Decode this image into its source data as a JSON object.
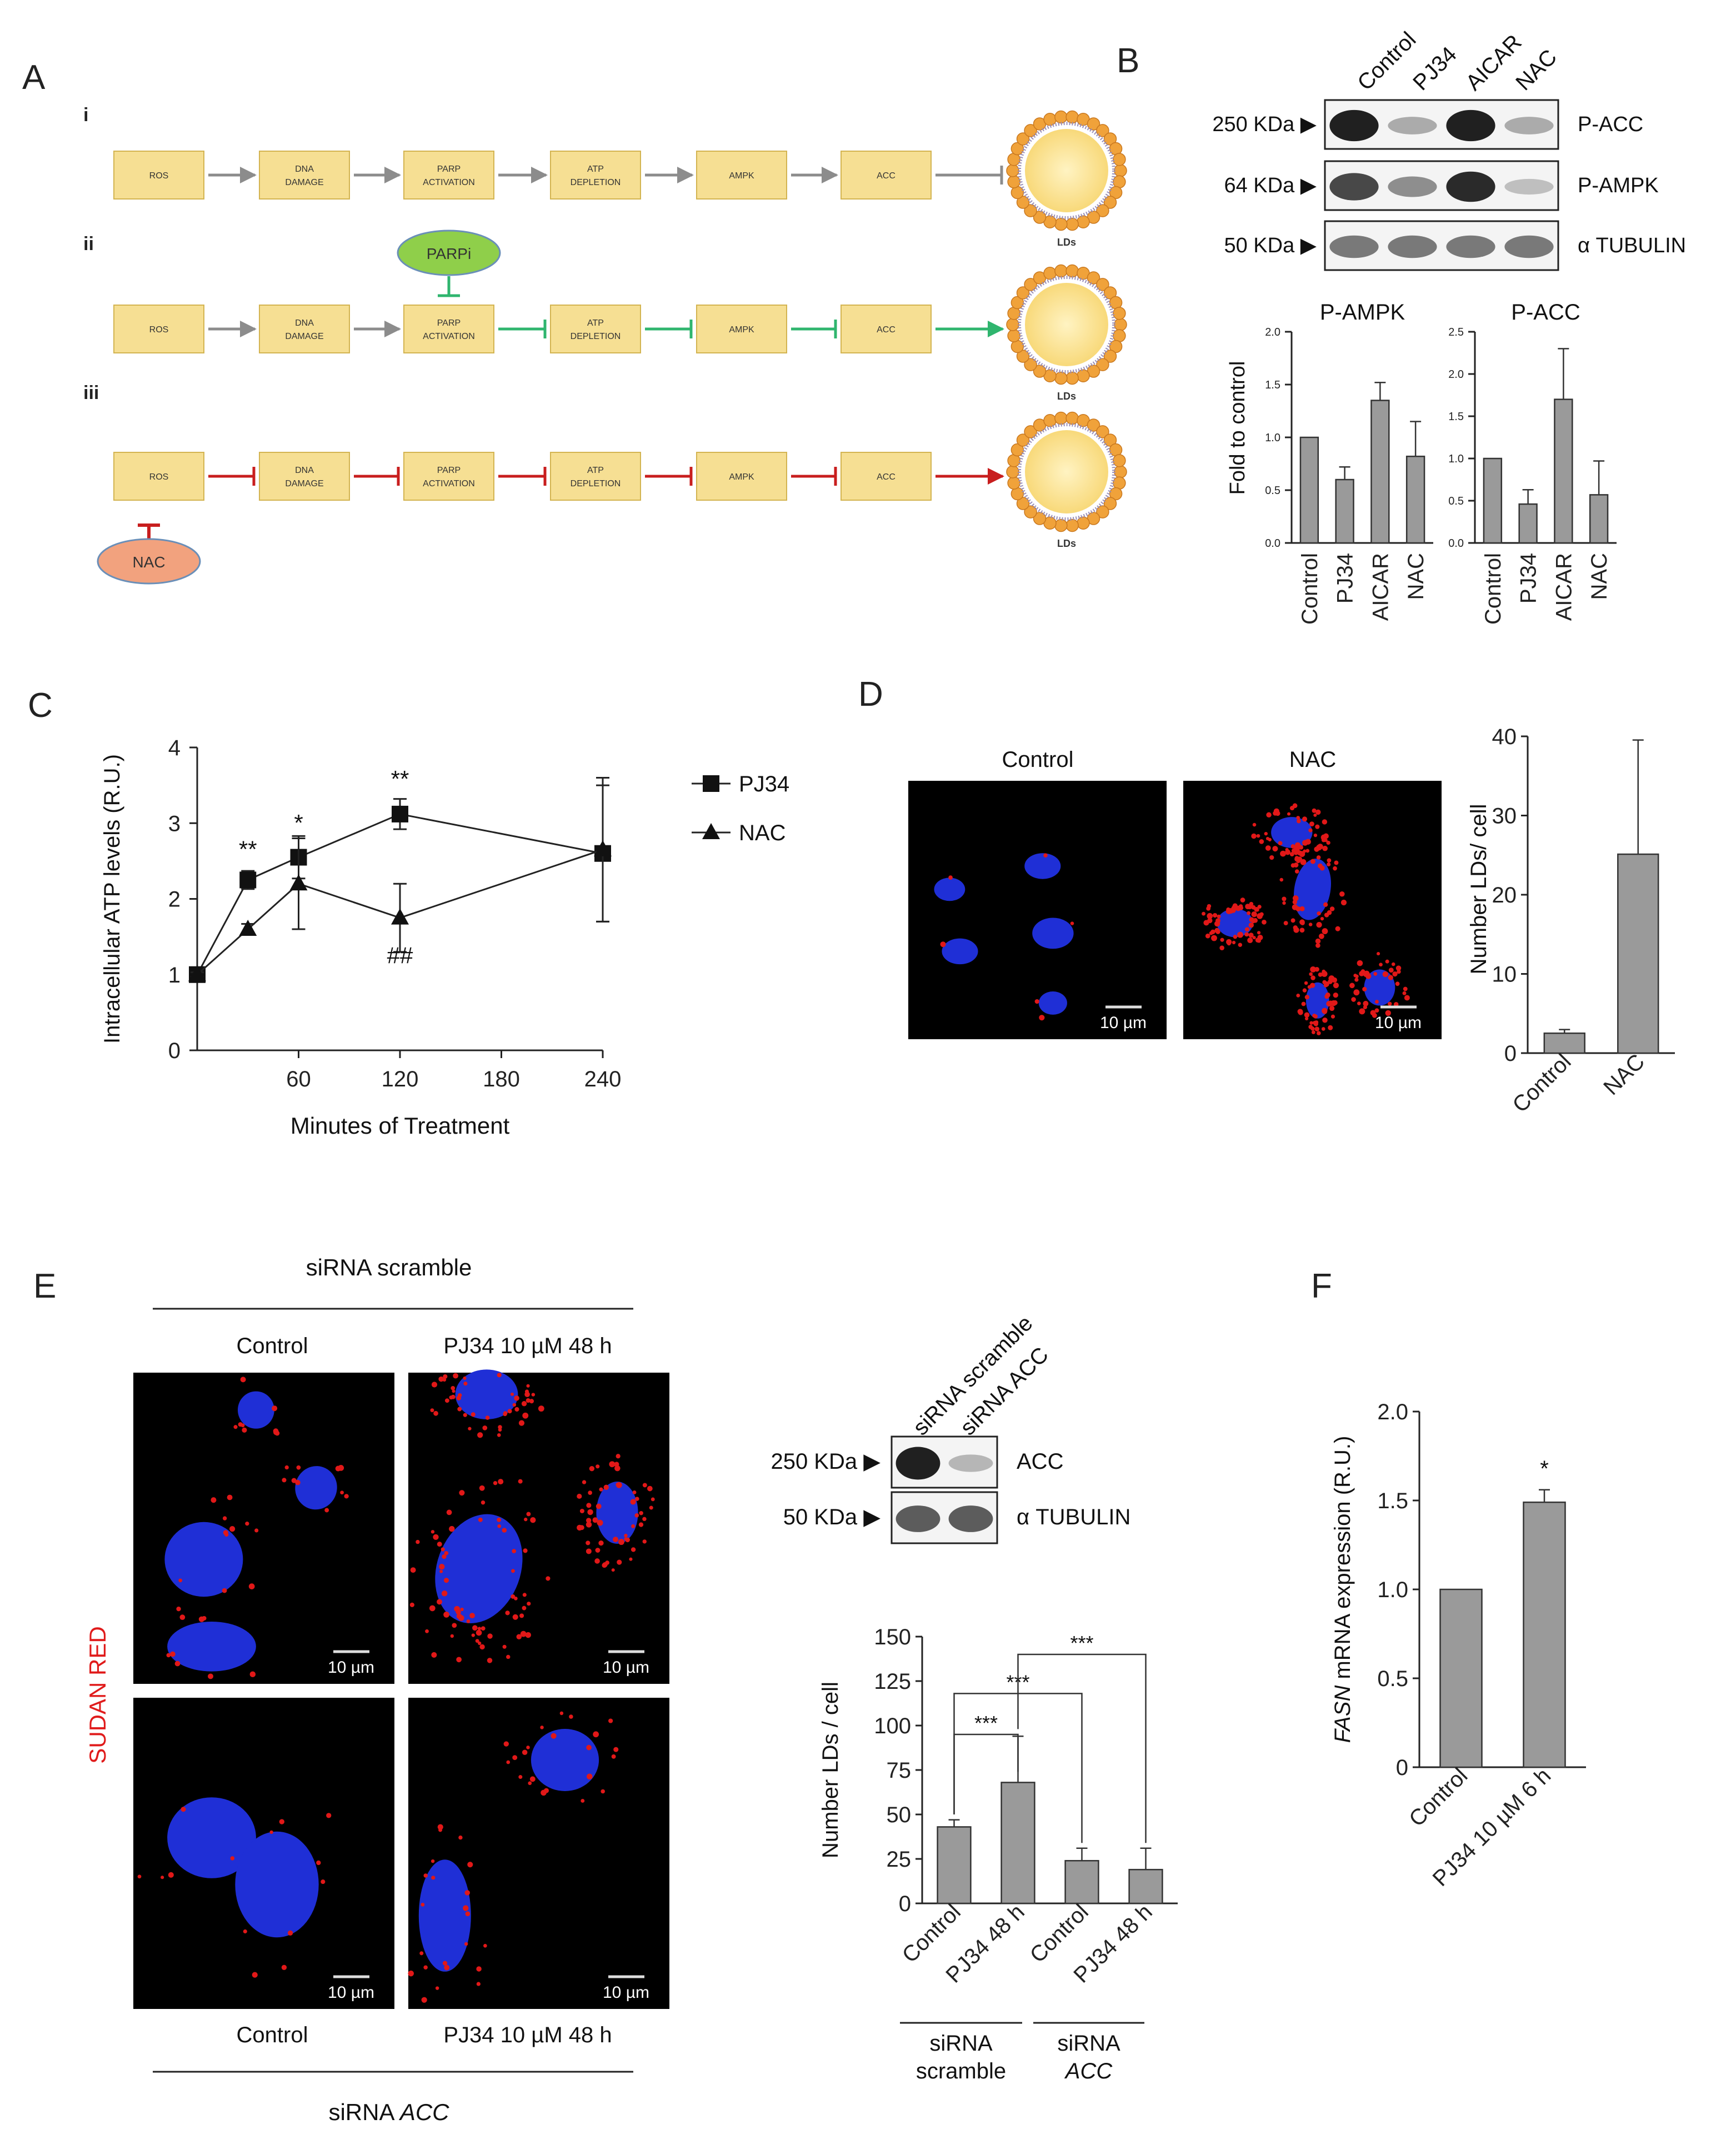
{
  "panels": {
    "A": "A",
    "B": "B",
    "C": "C",
    "D": "D",
    "E": "E",
    "F": "F"
  },
  "panelA": {
    "rows": [
      {
        "label": "i",
        "arrow_color": "#8c8c8c",
        "lipid_arrow": "inhibit",
        "inhibitor": ""
      },
      {
        "label": "ii",
        "arrow_color": "#2fb56e",
        "lipid_arrow": "arrow",
        "inhibitor": "PARPi",
        "inhibitor_color": "#8fcf4a",
        "inhibitor_target": 2
      },
      {
        "label": "iii",
        "arrow_color": "#c81e1e",
        "lipid_arrow": "arrow",
        "inhibitor": "NAC",
        "inhibitor_color": "#f2a27e",
        "inhibitor_target": 0
      }
    ],
    "boxes": [
      [
        "ROS"
      ],
      [
        "DNA",
        "DAMAGE"
      ],
      [
        "PARP",
        "ACTIVATION"
      ],
      [
        "ATP",
        "DEPLETION"
      ],
      [
        "AMPK"
      ],
      [
        "ACC"
      ]
    ],
    "lds_label": "LDs",
    "box_color": "#f6df93",
    "box_border": "#d3b451"
  },
  "panelB": {
    "lanes": [
      "Control",
      "PJ34",
      "AICAR",
      "NAC"
    ],
    "blots": [
      {
        "marker": "250 KDa ▶",
        "protein": "P-ACC",
        "intensities": [
          1.0,
          0.3,
          1.0,
          0.3
        ]
      },
      {
        "marker": "64 KDa ▶",
        "protein": "P-AMPK",
        "intensities": [
          0.8,
          0.45,
          0.95,
          0.2
        ]
      },
      {
        "marker": "50 KDa ▶",
        "protein": "α TUBULIN",
        "intensities": [
          0.55,
          0.55,
          0.55,
          0.55
        ]
      }
    ],
    "ylabel": "Fold to control",
    "chart_data": [
      {
        "type": "bar",
        "title": "P-AMPK",
        "categories": [
          "Control",
          "PJ34",
          "AICAR",
          "NAC"
        ],
        "values": [
          1.0,
          0.6,
          1.35,
          0.82
        ],
        "errors": [
          0,
          0.12,
          0.17,
          0.33
        ],
        "ylim": [
          0,
          2.0
        ],
        "yticks": [
          "0.0",
          "0.5",
          "1.0",
          "1.5",
          "2.0"
        ],
        "ylabel": "Fold to control"
      },
      {
        "type": "bar",
        "title": "P-ACC",
        "categories": [
          "Control",
          "PJ34",
          "AICAR",
          "NAC"
        ],
        "values": [
          1.0,
          0.46,
          1.7,
          0.57
        ],
        "errors": [
          0,
          0.17,
          0.6,
          0.4
        ],
        "ylim": [
          0,
          2.5
        ],
        "yticks": [
          "0.0",
          "0.5",
          "1.0",
          "1.5",
          "2.0",
          "2.5"
        ],
        "ylabel": ""
      }
    ]
  },
  "panelC": {
    "chart_data": {
      "type": "line",
      "xlabel": "Minutes of Treatment",
      "ylabel": "Intracellular ATP levels (R.U.)",
      "xlim": [
        0,
        240
      ],
      "ylim": [
        0,
        4
      ],
      "xticks": [
        "60",
        "120",
        "180",
        "240"
      ],
      "yticks": [
        "0",
        "1",
        "2",
        "3",
        "4"
      ],
      "series": [
        {
          "name": "PJ34",
          "marker": "square",
          "x": [
            0,
            30,
            60,
            120,
            240
          ],
          "y": [
            1.0,
            2.25,
            2.55,
            3.12,
            2.6
          ],
          "err": [
            0.03,
            0.12,
            0.28,
            0.2,
            0.9
          ]
        },
        {
          "name": "NAC",
          "marker": "triangle",
          "x": [
            0,
            30,
            60,
            120,
            240
          ],
          "y": [
            1.0,
            1.6,
            2.2,
            1.75,
            2.65
          ],
          "err": [
            0.03,
            0.07,
            0.6,
            0.45,
            0.95
          ]
        }
      ],
      "annotations": [
        {
          "text": "**",
          "x": 30,
          "y": 2.55
        },
        {
          "text": "*",
          "x": 60,
          "y": 2.9
        },
        {
          "text": "**",
          "x": 120,
          "y": 3.48
        },
        {
          "text": "##",
          "x": 120,
          "y": 1.15
        }
      ]
    }
  },
  "panelD": {
    "image_labels": [
      "Control",
      "NAC"
    ],
    "scalebar": "10 µm",
    "chart_data": {
      "type": "bar",
      "categories": [
        "Control",
        "NAC"
      ],
      "values": [
        2.7,
        27.0
      ],
      "errors": [
        0.5,
        15.5
      ],
      "ylim": [
        0,
        43
      ],
      "yticks": [
        "0",
        "10",
        "20",
        "30",
        "40"
      ],
      "ylabel": "Number LDs/ cell"
    }
  },
  "panelE": {
    "top_group": "siRNA scramble",
    "bottom_group": "siRNA",
    "bottom_group_italic": "ACC",
    "col_labels_top": [
      "Control",
      "PJ34 10 µM 48 h"
    ],
    "col_labels_bottom": [
      "Control",
      "PJ34 10 µM 48 h"
    ],
    "side_label": "SUDAN RED",
    "scalebar": "10 µm",
    "blot_lanes": [
      "siRNA scramble",
      "siRNA ACC"
    ],
    "blots": [
      {
        "marker": "250 KDa ▶",
        "protein": "ACC",
        "intensities": [
          1.0,
          0.25
        ]
      },
      {
        "marker": "50 KDa ▶",
        "protein": "α TUBULIN",
        "intensities": [
          0.7,
          0.7
        ]
      }
    ],
    "chart_data": {
      "type": "bar",
      "categories": [
        "Control",
        "PJ34 48 h",
        "Control",
        "PJ34 48 h"
      ],
      "values": [
        43,
        68,
        24,
        19
      ],
      "errors": [
        4,
        26,
        7,
        12
      ],
      "ylim": [
        0,
        150
      ],
      "yticks": [
        "0",
        "25",
        "50",
        "75",
        "100",
        "125",
        "150"
      ],
      "ylabel": "Number LDs / cell",
      "groups": [
        [
          "siRNA",
          "scramble"
        ],
        [
          "siRNA",
          "ACC"
        ]
      ],
      "significance": [
        "***",
        "***",
        "***"
      ]
    }
  },
  "panelF": {
    "chart_data": {
      "type": "bar",
      "categories": [
        "Control",
        "PJ34 10 µM 6 h"
      ],
      "values": [
        1.0,
        1.49
      ],
      "errors": [
        0,
        0.07
      ],
      "ylim": [
        0,
        2.0
      ],
      "yticks": [
        "0",
        "0.5",
        "1.0",
        "1.5",
        "2.0"
      ],
      "ylabel_italic": "FASN",
      "ylabel": " mRNA expression (R.U.)",
      "significance": [
        "*"
      ]
    }
  }
}
